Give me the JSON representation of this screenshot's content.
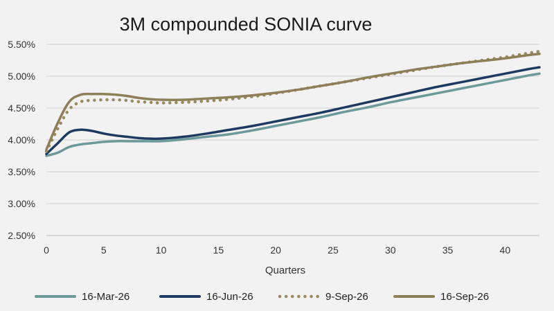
{
  "chart_data": {
    "type": "line",
    "title": "3M compounded SONIA curve",
    "xlabel": "Quarters",
    "ylabel": "",
    "xlim": [
      0,
      43
    ],
    "ylim": [
      2.5,
      5.5
    ],
    "xticks": [
      0,
      5,
      10,
      15,
      20,
      25,
      30,
      35,
      40
    ],
    "xtick_labels": [
      "0",
      "5",
      "10",
      "15",
      "20",
      "25",
      "30",
      "35",
      "40"
    ],
    "yticks": [
      2.5,
      3.0,
      3.5,
      4.0,
      4.5,
      5.0,
      5.5
    ],
    "ytick_labels": [
      "2.50%",
      "3.00%",
      "3.50%",
      "4.00%",
      "4.50%",
      "5.00%",
      "5.50%"
    ],
    "grid": "horizontal",
    "legend_position": "bottom",
    "series": [
      {
        "name": "16-Mar-26",
        "color": "#6c9a9a",
        "style": "solid",
        "x": [
          0,
          1,
          2,
          3,
          4,
          5,
          6,
          7,
          8,
          9,
          10,
          12,
          14,
          16,
          18,
          20,
          22,
          24,
          26,
          28,
          30,
          32,
          34,
          36,
          38,
          40,
          42,
          43
        ],
        "y": [
          3.75,
          3.8,
          3.89,
          3.93,
          3.95,
          3.97,
          3.98,
          3.98,
          3.98,
          3.98,
          3.98,
          4.01,
          4.05,
          4.09,
          4.15,
          4.22,
          4.29,
          4.36,
          4.44,
          4.51,
          4.59,
          4.66,
          4.73,
          4.8,
          4.87,
          4.94,
          5.01,
          5.04
        ]
      },
      {
        "name": "16-Jun-26",
        "color": "#1f3a60",
        "style": "solid",
        "x": [
          0,
          1,
          2,
          3,
          4,
          5,
          6,
          7,
          8,
          9,
          10,
          12,
          14,
          16,
          18,
          20,
          22,
          24,
          26,
          28,
          30,
          32,
          34,
          36,
          38,
          40,
          42,
          43
        ],
        "y": [
          3.78,
          3.95,
          4.12,
          4.16,
          4.14,
          4.1,
          4.07,
          4.05,
          4.03,
          4.02,
          4.02,
          4.05,
          4.1,
          4.16,
          4.22,
          4.29,
          4.36,
          4.43,
          4.51,
          4.59,
          4.67,
          4.75,
          4.83,
          4.9,
          4.97,
          5.04,
          5.11,
          5.14
        ]
      },
      {
        "name": "9-Sep-26",
        "color": "#9a8a62",
        "style": "dotted",
        "x": [
          0,
          1,
          2,
          3,
          4,
          5,
          6,
          7,
          8,
          9,
          10,
          12,
          14,
          16,
          18,
          20,
          22,
          24,
          26,
          28,
          30,
          32,
          34,
          36,
          38,
          40,
          42,
          43
        ],
        "y": [
          3.82,
          4.18,
          4.48,
          4.6,
          4.62,
          4.63,
          4.63,
          4.62,
          4.6,
          4.59,
          4.58,
          4.59,
          4.61,
          4.64,
          4.68,
          4.73,
          4.79,
          4.85,
          4.91,
          4.97,
          5.03,
          5.09,
          5.15,
          5.2,
          5.25,
          5.3,
          5.36,
          5.39
        ]
      },
      {
        "name": "16-Sep-26",
        "color": "#8f7f58",
        "style": "solid",
        "x": [
          0,
          1,
          2,
          3,
          4,
          5,
          6,
          7,
          8,
          9,
          10,
          12,
          14,
          16,
          18,
          20,
          22,
          24,
          26,
          28,
          30,
          32,
          34,
          36,
          38,
          40,
          42,
          43
        ],
        "y": [
          3.85,
          4.27,
          4.6,
          4.71,
          4.72,
          4.72,
          4.71,
          4.69,
          4.66,
          4.64,
          4.63,
          4.63,
          4.65,
          4.67,
          4.7,
          4.74,
          4.79,
          4.85,
          4.91,
          4.98,
          5.04,
          5.1,
          5.15,
          5.2,
          5.24,
          5.28,
          5.33,
          5.35
        ]
      }
    ]
  }
}
